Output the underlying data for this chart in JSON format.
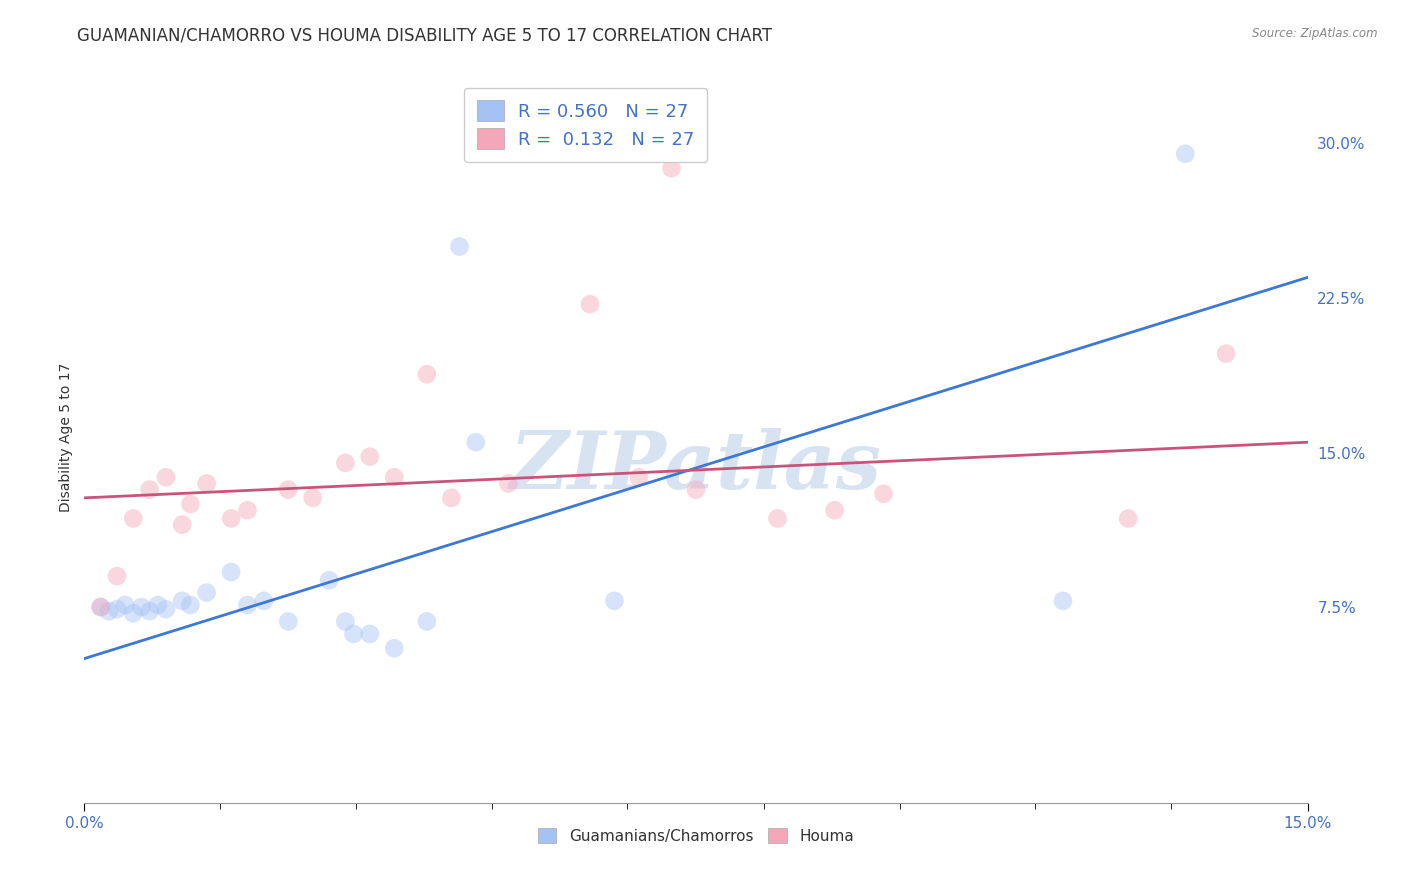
{
  "title": "GUAMANIAN/CHAMORRO VS HOUMA DISABILITY AGE 5 TO 17 CORRELATION CHART",
  "source": "Source: ZipAtlas.com",
  "ylabel": "Disability Age 5 to 17",
  "xlim": [
    0.0,
    0.15
  ],
  "ylim": [
    -0.02,
    0.335
  ],
  "xticks_major": [
    0.0,
    0.15
  ],
  "xticks_minor": [
    0.0,
    0.0166,
    0.0333,
    0.05,
    0.0666,
    0.0833,
    0.1,
    0.1166,
    0.1333,
    0.15
  ],
  "xticklabels_major": [
    "0.0%",
    "15.0%"
  ],
  "yticks_right": [
    0.075,
    0.15,
    0.225,
    0.3
  ],
  "yticklabels_right": [
    "7.5%",
    "15.0%",
    "22.5%",
    "30.0%"
  ],
  "blue_R": "0.560",
  "blue_N": "27",
  "pink_R": "0.132",
  "pink_N": "27",
  "blue_color": "#a4c2f4",
  "pink_color": "#f4a7b9",
  "blue_line_color": "#3c78d8",
  "pink_line_color": "#c9547a",
  "blue_scatter_x": [
    0.002,
    0.003,
    0.004,
    0.005,
    0.006,
    0.007,
    0.008,
    0.009,
    0.01,
    0.012,
    0.013,
    0.015,
    0.018,
    0.02,
    0.022,
    0.025,
    0.03,
    0.032,
    0.033,
    0.035,
    0.038,
    0.042,
    0.046,
    0.048,
    0.065,
    0.12,
    0.135
  ],
  "blue_scatter_y": [
    0.075,
    0.073,
    0.074,
    0.076,
    0.072,
    0.075,
    0.073,
    0.076,
    0.074,
    0.078,
    0.076,
    0.082,
    0.092,
    0.076,
    0.078,
    0.068,
    0.088,
    0.068,
    0.062,
    0.062,
    0.055,
    0.068,
    0.25,
    0.155,
    0.078,
    0.078,
    0.295
  ],
  "pink_scatter_x": [
    0.002,
    0.004,
    0.006,
    0.008,
    0.01,
    0.012,
    0.013,
    0.015,
    0.018,
    0.02,
    0.025,
    0.028,
    0.032,
    0.035,
    0.038,
    0.042,
    0.045,
    0.052,
    0.062,
    0.068,
    0.072,
    0.075,
    0.085,
    0.092,
    0.098,
    0.128,
    0.14
  ],
  "pink_scatter_y": [
    0.075,
    0.09,
    0.118,
    0.132,
    0.138,
    0.115,
    0.125,
    0.135,
    0.118,
    0.122,
    0.132,
    0.128,
    0.145,
    0.148,
    0.138,
    0.188,
    0.128,
    0.135,
    0.222,
    0.138,
    0.288,
    0.132,
    0.118,
    0.122,
    0.13,
    0.118,
    0.198
  ],
  "blue_line_x": [
    0.0,
    0.15
  ],
  "blue_line_y": [
    0.05,
    0.235
  ],
  "pink_line_x": [
    0.0,
    0.15
  ],
  "pink_line_y": [
    0.128,
    0.155
  ],
  "watermark_text": "ZIPatlas",
  "watermark_color": "#c8d8ed",
  "watermark_alpha": 0.7,
  "background_color": "#ffffff",
  "grid_color": "#cccccc",
  "scatter_size": 180,
  "scatter_alpha": 0.45,
  "title_fontsize": 12,
  "axis_label_fontsize": 10,
  "tick_fontsize": 11,
  "legend_fontsize": 13
}
